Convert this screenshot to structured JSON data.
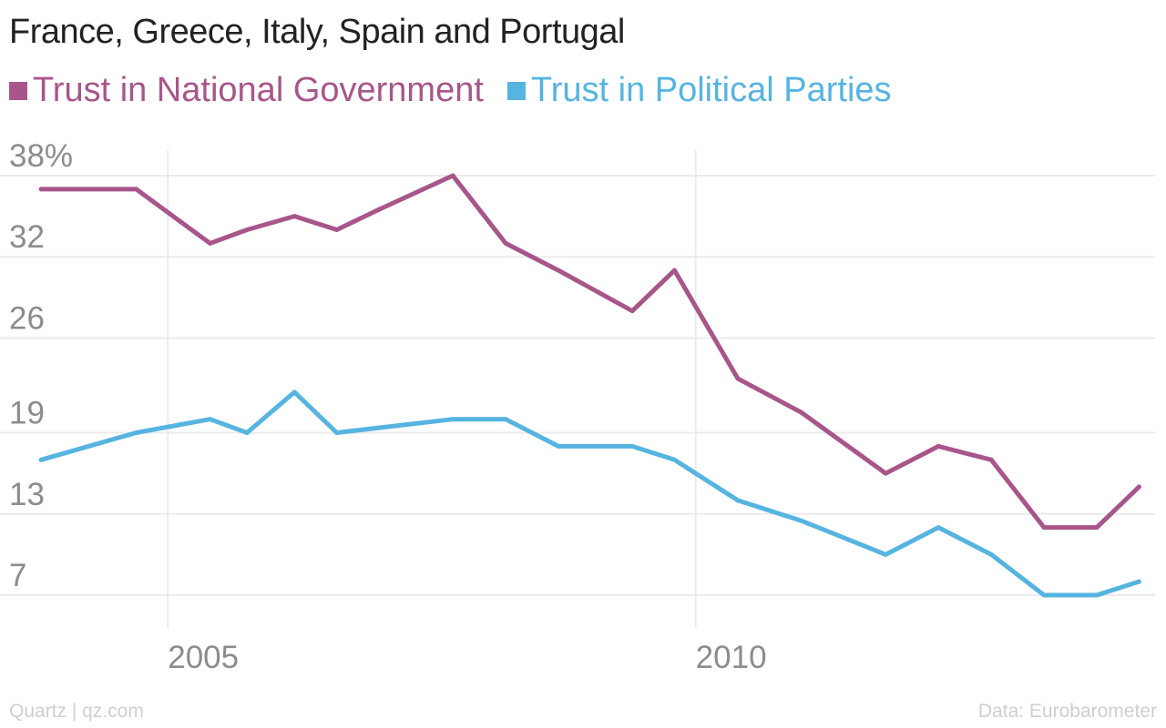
{
  "chart_data": {
    "type": "line",
    "title": "France, Greece, Italy, Spain and Portugal",
    "xlabel": "",
    "ylabel": "",
    "ylim": [
      7,
      38
    ],
    "xlim": [
      2003.6,
      2014.3
    ],
    "yticks": [
      {
        "value": 38,
        "label": "38%"
      },
      {
        "value": 32,
        "label": "32"
      },
      {
        "value": 26,
        "label": "26"
      },
      {
        "value": 19,
        "label": "19"
      },
      {
        "value": 13,
        "label": "13"
      },
      {
        "value": 7,
        "label": "7"
      }
    ],
    "xticks": [
      {
        "value": 2005,
        "label": "2005"
      },
      {
        "value": 2010,
        "label": "2010"
      }
    ],
    "grid": true,
    "legend_position": "top-left",
    "series": [
      {
        "name": "Trust in National Government",
        "color": "#a8568a",
        "points": [
          {
            "x": 2003.8,
            "y": 37
          },
          {
            "x": 2004.7,
            "y": 37
          },
          {
            "x": 2005.4,
            "y": 33
          },
          {
            "x": 2005.75,
            "y": 34
          },
          {
            "x": 2006.2,
            "y": 35
          },
          {
            "x": 2006.6,
            "y": 34
          },
          {
            "x": 2007.0,
            "y": 35.5
          },
          {
            "x": 2007.7,
            "y": 38
          },
          {
            "x": 2008.2,
            "y": 33
          },
          {
            "x": 2008.7,
            "y": 31
          },
          {
            "x": 2009.4,
            "y": 28
          },
          {
            "x": 2009.8,
            "y": 31
          },
          {
            "x": 2010.4,
            "y": 23
          },
          {
            "x": 2011.0,
            "y": 20.5
          },
          {
            "x": 2011.8,
            "y": 16
          },
          {
            "x": 2012.3,
            "y": 18
          },
          {
            "x": 2012.8,
            "y": 17
          },
          {
            "x": 2013.3,
            "y": 12
          },
          {
            "x": 2013.8,
            "y": 12
          },
          {
            "x": 2014.2,
            "y": 15
          }
        ]
      },
      {
        "name": "Trust in Political Parties",
        "color": "#56b4e1",
        "points": [
          {
            "x": 2003.8,
            "y": 17
          },
          {
            "x": 2004.7,
            "y": 19
          },
          {
            "x": 2005.4,
            "y": 20
          },
          {
            "x": 2005.75,
            "y": 19
          },
          {
            "x": 2006.2,
            "y": 22
          },
          {
            "x": 2006.6,
            "y": 19
          },
          {
            "x": 2007.7,
            "y": 20
          },
          {
            "x": 2008.2,
            "y": 20
          },
          {
            "x": 2008.7,
            "y": 18
          },
          {
            "x": 2009.4,
            "y": 18
          },
          {
            "x": 2009.8,
            "y": 17
          },
          {
            "x": 2010.4,
            "y": 14
          },
          {
            "x": 2011.0,
            "y": 12.5
          },
          {
            "x": 2011.8,
            "y": 10
          },
          {
            "x": 2012.3,
            "y": 12
          },
          {
            "x": 2012.8,
            "y": 10
          },
          {
            "x": 2013.3,
            "y": 7
          },
          {
            "x": 2013.8,
            "y": 7
          },
          {
            "x": 2014.2,
            "y": 8
          }
        ]
      }
    ]
  },
  "footer": {
    "source_left": "Quartz | qz.com",
    "source_right": "Data: Eurobarometer"
  },
  "colors": {
    "gridline": "#ebebeb",
    "tick_text": "#8c8c8c",
    "title_text": "#222222",
    "footer_text": "#cfcfcf"
  }
}
